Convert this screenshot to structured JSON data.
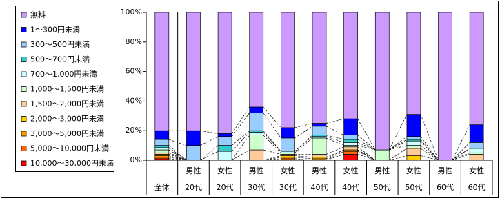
{
  "chart_data": {
    "type": "stacked_bar",
    "categories": [
      [
        "全体"
      ],
      [
        "男性",
        "20代"
      ],
      [
        "女性",
        "20代"
      ],
      [
        "男性",
        "30代"
      ],
      [
        "女性",
        "30代"
      ],
      [
        "男性",
        "40代"
      ],
      [
        "女性",
        "40代"
      ],
      [
        "男性",
        "50代"
      ],
      [
        "女性",
        "50代"
      ],
      [
        "男性",
        "60代"
      ],
      [
        "女性",
        "60代"
      ]
    ],
    "series": [
      {
        "name": "無料",
        "color": "#cc99ff",
        "values": [
          80,
          80,
          82,
          64,
          78,
          75,
          72,
          93,
          69,
          100,
          76
        ]
      },
      {
        "name": "1～300円未満",
        "color": "#0000ff",
        "values": [
          6,
          10,
          2,
          4,
          7,
          2,
          11,
          0,
          15,
          0,
          12
        ]
      },
      {
        "name": "300～500円未満",
        "color": "#99ccff",
        "values": [
          4,
          10,
          6,
          12,
          9,
          6,
          3,
          0,
          2,
          0,
          4
        ]
      },
      {
        "name": "500～700円未満",
        "color": "#33cccc",
        "values": [
          1.5,
          0,
          4,
          1,
          0,
          1,
          2,
          0,
          1,
          0,
          0
        ]
      },
      {
        "name": "700～1,000円未満",
        "color": "#ccffff",
        "values": [
          1.5,
          0,
          6,
          2,
          1,
          1,
          2,
          0,
          3,
          0,
          3
        ]
      },
      {
        "name": "1,000～1,500円未満",
        "color": "#ccffcc",
        "values": [
          2,
          0,
          0,
          10,
          1,
          11,
          1,
          7,
          2,
          0,
          1
        ]
      },
      {
        "name": "1,500～2,000円未満",
        "color": "#ffcc99",
        "values": [
          1,
          0,
          0,
          7,
          1,
          2,
          2,
          0,
          5,
          0,
          4
        ]
      },
      {
        "name": "2,000～3,000円未満",
        "color": "#ffcc00",
        "values": [
          1,
          0,
          0,
          0,
          1,
          1,
          0,
          0,
          3,
          0,
          0
        ]
      },
      {
        "name": "3,000～5,000円未満",
        "color": "#ff9900",
        "values": [
          1,
          0,
          0,
          0,
          1,
          1,
          1,
          0,
          0,
          0,
          0
        ]
      },
      {
        "name": "5,000～10,000円未満",
        "color": "#ff6600",
        "values": [
          1,
          0,
          0,
          0,
          1,
          0,
          2,
          0,
          0,
          0,
          0
        ]
      },
      {
        "name": "10,000～30,000円未満",
        "color": "#ff0000",
        "values": [
          1,
          0,
          0,
          0,
          0,
          0,
          4,
          0,
          0,
          0,
          0
        ]
      }
    ],
    "ylim": [
      0,
      100
    ],
    "yticks": [
      {
        "value": 0,
        "label": "0%"
      },
      {
        "value": 20,
        "label": "20%"
      },
      {
        "value": 40,
        "label": "40%"
      },
      {
        "value": 60,
        "label": "60%"
      },
      {
        "value": 80,
        "label": "80%"
      },
      {
        "value": 100,
        "label": "100%"
      }
    ]
  }
}
